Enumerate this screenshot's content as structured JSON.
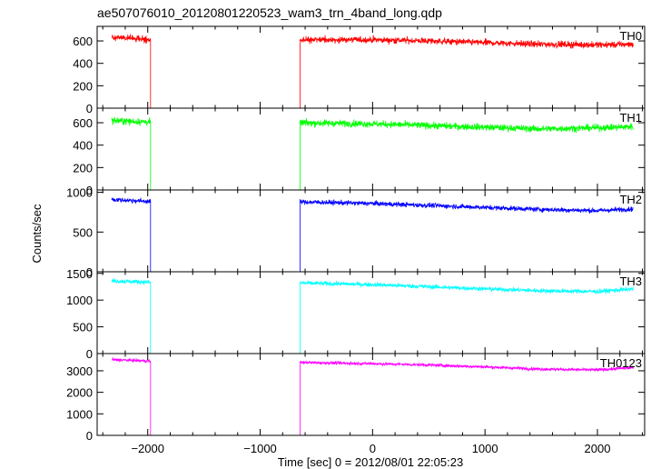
{
  "chart_data": {
    "type": "line",
    "title": "ae507076010_20120801220523_wam3_trn_4band_long.qdp",
    "xlabel": "Time [sec] 0 = 2012/08/01 22:05:23",
    "ylabel": "Counts/sec",
    "xlim": [
      -2450,
      2420
    ],
    "xticks": [
      -2000,
      -1000,
      0,
      1000,
      2000
    ],
    "xtick_labels": [
      "−2000",
      "−1000",
      "0",
      "1000",
      "2000"
    ],
    "gap": [
      -1975,
      -645
    ],
    "x_range": [
      -2320,
      2320
    ],
    "series": [
      {
        "name": "TH0",
        "color": "#ff0000",
        "ylim": [
          0,
          730
        ],
        "yticks": [
          0,
          200,
          400,
          600
        ],
        "ytick_labels": [
          "0",
          "200",
          "400",
          "600"
        ],
        "trend": [
          [
            -2320,
            635
          ],
          [
            -1980,
            610
          ],
          [
            -640,
            610
          ],
          [
            0,
            610
          ],
          [
            500,
            600
          ],
          [
            1000,
            585
          ],
          [
            1500,
            570
          ],
          [
            2000,
            565
          ],
          [
            2320,
            570
          ]
        ],
        "noise": 28
      },
      {
        "name": "TH1",
        "color": "#00ff00",
        "ylim": [
          0,
          730
        ],
        "yticks": [
          0,
          200,
          400,
          600
        ],
        "ytick_labels": [
          "0",
          "200",
          "400",
          "600"
        ],
        "trend": [
          [
            -2320,
            620
          ],
          [
            -1980,
            605
          ],
          [
            -640,
            600
          ],
          [
            0,
            590
          ],
          [
            500,
            575
          ],
          [
            1000,
            560
          ],
          [
            1500,
            545
          ],
          [
            2000,
            555
          ],
          [
            2320,
            565
          ]
        ],
        "noise": 30
      },
      {
        "name": "TH2",
        "color": "#0000ff",
        "ylim": [
          0,
          1030
        ],
        "yticks": [
          0,
          500,
          1000
        ],
        "ytick_labels": [
          "0",
          "500",
          "1000"
        ],
        "trend": [
          [
            -2320,
            910
          ],
          [
            -1980,
            885
          ],
          [
            -640,
            880
          ],
          [
            0,
            860
          ],
          [
            500,
            835
          ],
          [
            1000,
            810
          ],
          [
            1500,
            785
          ],
          [
            2000,
            770
          ],
          [
            2320,
            790
          ]
        ],
        "noise": 30
      },
      {
        "name": "TH3",
        "color": "#00ffff",
        "ylim": [
          0,
          1530
        ],
        "yticks": [
          0,
          500,
          1000,
          1500
        ],
        "ytick_labels": [
          "0",
          "500",
          "1000",
          "1500"
        ],
        "trend": [
          [
            -2320,
            1360
          ],
          [
            -1980,
            1335
          ],
          [
            -640,
            1320
          ],
          [
            0,
            1290
          ],
          [
            500,
            1250
          ],
          [
            1000,
            1210
          ],
          [
            1500,
            1175
          ],
          [
            2000,
            1160
          ],
          [
            2320,
            1210
          ]
        ],
        "noise": 40
      },
      {
        "name": "TH0123",
        "color": "#ff00ff",
        "ylim": [
          0,
          3800
        ],
        "yticks": [
          0,
          1000,
          2000,
          3000
        ],
        "ytick_labels": [
          "0",
          "1000",
          "2000",
          "3000"
        ],
        "trend": [
          [
            -2320,
            3520
          ],
          [
            -1980,
            3450
          ],
          [
            -640,
            3390
          ],
          [
            0,
            3330
          ],
          [
            500,
            3270
          ],
          [
            1000,
            3180
          ],
          [
            1500,
            3080
          ],
          [
            2000,
            3040
          ],
          [
            2320,
            3150
          ]
        ],
        "noise": 70
      }
    ]
  }
}
